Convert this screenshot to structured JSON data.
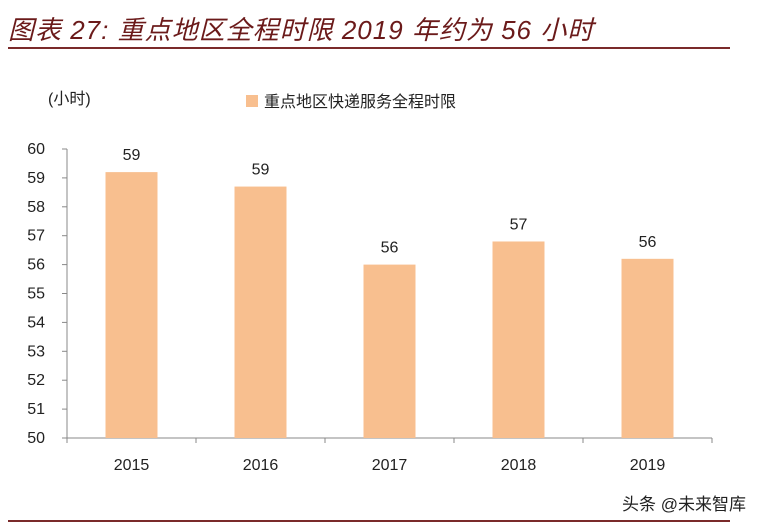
{
  "title": "图表 27: 重点地区全程时限 2019 年约为 56 小时",
  "watermark": "头条 @未来智库",
  "chart_data": {
    "type": "bar",
    "title": "",
    "ylabel": "(小时)",
    "xlabel": "",
    "categories": [
      "2015",
      "2016",
      "2017",
      "2018",
      "2019"
    ],
    "series": [
      {
        "name": "重点地区快递服务全程时限",
        "values": [
          59.2,
          58.7,
          56.0,
          56.8,
          56.2
        ],
        "data_labels": [
          "59",
          "59",
          "56",
          "57",
          "56"
        ],
        "color": "#f8bf8f"
      }
    ],
    "ylim": [
      50,
      60
    ],
    "yticks": [
      "50",
      "51",
      "52",
      "53",
      "54",
      "55",
      "56",
      "57",
      "58",
      "59",
      "60"
    ],
    "grid": false,
    "legend": "top"
  }
}
